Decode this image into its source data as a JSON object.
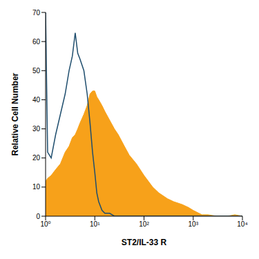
{
  "chart_data": {
    "type": "histogram",
    "x_label": "ST2/IL-33 R",
    "y_label": "Relative Cell Number",
    "log": "x",
    "grid": false,
    "x": [
      1,
      1.1,
      1.3,
      1.6,
      2,
      2.5,
      3,
      3.5,
      4,
      4.5,
      5,
      6,
      7,
      8,
      9,
      10,
      11,
      12,
      14,
      16,
      20,
      25,
      30,
      40,
      50,
      70,
      100,
      150,
      200,
      300,
      400,
      600,
      800,
      1000,
      1500,
      2000,
      3000,
      5000,
      7000,
      10000
    ],
    "series": [
      {
        "type": "area",
        "color": "#f7a11a",
        "values": [
          12,
          13,
          14,
          16,
          18,
          22,
          24,
          27,
          28,
          30,
          32,
          35,
          38,
          42,
          43,
          43,
          41,
          40,
          38,
          36,
          33,
          30,
          28,
          24,
          21,
          18,
          14,
          10,
          8,
          6,
          5,
          4,
          3,
          2,
          0.5,
          0.5,
          0,
          0,
          0.5,
          0
        ]
      },
      {
        "type": "line",
        "color": "#1f4e6e",
        "values": [
          70,
          22,
          20,
          28,
          35,
          42,
          50,
          55,
          63,
          56,
          54,
          50,
          42,
          32,
          22,
          15,
          8,
          5,
          2,
          1,
          1,
          0,
          0,
          0,
          0,
          0,
          0,
          0,
          0,
          0,
          0,
          0,
          0,
          0,
          0,
          0,
          0,
          0,
          0,
          0
        ]
      }
    ],
    "xlim": [
      1,
      10000
    ],
    "xticks": [
      {
        "value": 1,
        "label": "10⁰"
      },
      {
        "value": 10,
        "label": "10¹"
      },
      {
        "value": 100,
        "label": "10²"
      },
      {
        "value": 1000,
        "label": "10³"
      },
      {
        "value": 10000,
        "label": "10⁴"
      }
    ],
    "ylim": [
      0,
      70
    ],
    "yticks": [
      0,
      10,
      20,
      30,
      40,
      50,
      60,
      70
    ]
  }
}
